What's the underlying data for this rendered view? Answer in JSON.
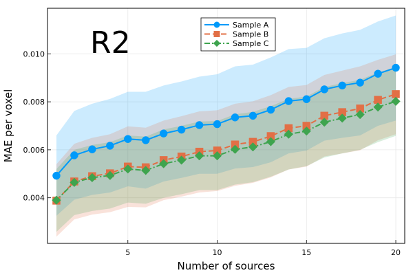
{
  "chart_data": {
    "type": "line",
    "panel_label": "R2",
    "xlabel": "Number of sources",
    "ylabel": "MAE per voxel",
    "xlim": [
      0.5,
      20.5
    ],
    "ylim": [
      0.0021,
      0.0119
    ],
    "xticks": [
      5,
      10,
      15,
      20
    ],
    "yticks": [
      0.004,
      0.006,
      0.008,
      0.01
    ],
    "ytick_labels": [
      "0.004",
      "0.006",
      "0.008",
      "0.010"
    ],
    "grid": true,
    "legend_position": "top-right",
    "x": [
      1,
      2,
      3,
      4,
      5,
      6,
      7,
      8,
      9,
      10,
      11,
      12,
      13,
      14,
      15,
      16,
      17,
      18,
      19,
      20
    ],
    "series": [
      {
        "name": "Sample A",
        "color": "#009AFA",
        "linestyle": "solid",
        "marker": "circle",
        "values": [
          0.00492,
          0.00577,
          0.00602,
          0.00617,
          0.00645,
          0.0064,
          0.00668,
          0.00684,
          0.00703,
          0.00707,
          0.00735,
          0.00742,
          0.00767,
          0.00803,
          0.00811,
          0.00852,
          0.00868,
          0.0088,
          0.00917,
          0.00942
        ],
        "upper": [
          0.0066,
          0.00762,
          0.00792,
          0.00812,
          0.00842,
          0.00842,
          0.00868,
          0.00885,
          0.00905,
          0.00915,
          0.00948,
          0.00955,
          0.00985,
          0.0102,
          0.01025,
          0.01065,
          0.01085,
          0.011,
          0.01135,
          0.0116
        ],
        "lower": [
          0.00325,
          0.00392,
          0.00412,
          0.00422,
          0.00448,
          0.00438,
          0.00468,
          0.00483,
          0.005,
          0.005,
          0.00522,
          0.00528,
          0.00548,
          0.00585,
          0.00597,
          0.00638,
          0.0065,
          0.0066,
          0.007,
          0.00722
        ]
      },
      {
        "name": "Sample B",
        "color": "#E26F46",
        "linestyle": "dash",
        "marker": "square",
        "values": [
          0.00388,
          0.00468,
          0.0049,
          0.00502,
          0.0053,
          0.00527,
          0.00557,
          0.00572,
          0.00592,
          0.00597,
          0.00622,
          0.00633,
          0.00657,
          0.0069,
          0.007,
          0.00742,
          0.00757,
          0.00772,
          0.00808,
          0.00832
        ],
        "upper": [
          0.0054,
          0.00625,
          0.0065,
          0.00665,
          0.00698,
          0.00692,
          0.00722,
          0.0074,
          0.0076,
          0.00765,
          0.00792,
          0.00802,
          0.00828,
          0.00862,
          0.0087,
          0.00912,
          0.0093,
          0.00948,
          0.00975,
          0.00998
        ],
        "lower": [
          0.00238,
          0.0031,
          0.0033,
          0.0034,
          0.00362,
          0.0036,
          0.0039,
          0.00405,
          0.00422,
          0.00428,
          0.0045,
          0.00462,
          0.00485,
          0.00518,
          0.0053,
          0.00572,
          0.00585,
          0.00598,
          0.0064,
          0.00665
        ]
      },
      {
        "name": "Sample C",
        "color": "#3EA44E",
        "linestyle": "dashdot",
        "marker": "diamond",
        "values": [
          0.0039,
          0.00464,
          0.00484,
          0.00493,
          0.0052,
          0.00514,
          0.00542,
          0.00557,
          0.00575,
          0.00575,
          0.00602,
          0.00612,
          0.00634,
          0.00665,
          0.00678,
          0.00715,
          0.00732,
          0.00747,
          0.00778,
          0.00802
        ],
        "upper": [
          0.0052,
          0.006,
          0.0062,
          0.00632,
          0.0066,
          0.00655,
          0.00685,
          0.007,
          0.00718,
          0.0072,
          0.00748,
          0.00758,
          0.00782,
          0.00812,
          0.00822,
          0.00862,
          0.00878,
          0.00892,
          0.00922,
          0.00945
        ],
        "lower": [
          0.00258,
          0.00328,
          0.00345,
          0.00355,
          0.0038,
          0.00375,
          0.004,
          0.00415,
          0.00432,
          0.00432,
          0.00455,
          0.00465,
          0.00488,
          0.00518,
          0.00532,
          0.00568,
          0.00585,
          0.006,
          0.00632,
          0.00658
        ]
      }
    ]
  }
}
